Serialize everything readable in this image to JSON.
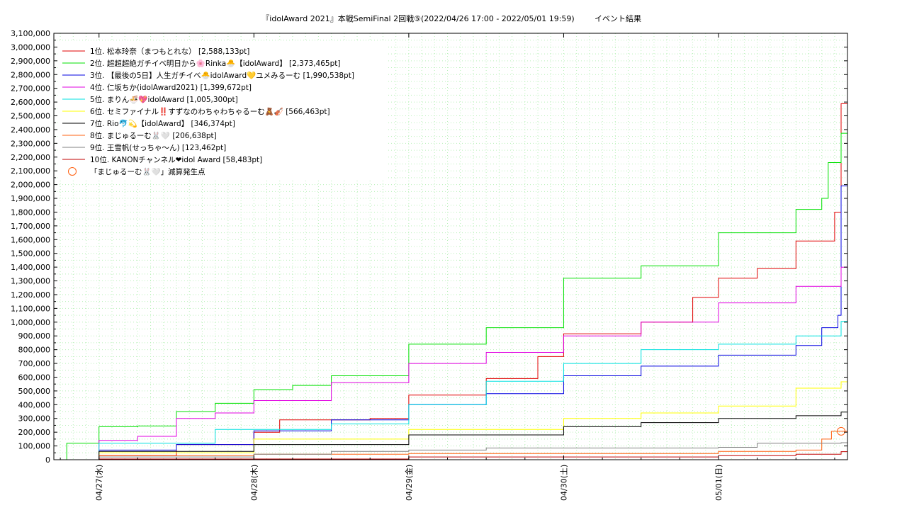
{
  "chart_data": {
    "type": "line",
    "title": "『idolAward 2021』本戦SemiFinal 2回戦⑤(2022/04/26 17:00 - 2022/05/01 19:59)",
    "subtitle": "イベント結果",
    "x_range": [
      "2022-04-26 17:00",
      "2022-05-01 19:59"
    ],
    "x_ticks": [
      {
        "t": "2022-04-27 00:00",
        "label": "04/27(水)"
      },
      {
        "t": "2022-04-28 00:00",
        "label": "04/28(木)"
      },
      {
        "t": "2022-04-29 00:00",
        "label": "04/29(金)"
      },
      {
        "t": "2022-04-30 00:00",
        "label": "04/30(土)"
      },
      {
        "t": "2022-05-01 00:00",
        "label": "05/01(日)"
      }
    ],
    "ylim": [
      0,
      3100000
    ],
    "y_ticks": [
      {
        "v": 0,
        "label": "0"
      },
      {
        "v": 100000,
        "label": "100,000"
      },
      {
        "v": 200000,
        "label": "200,000"
      },
      {
        "v": 300000,
        "label": "300,000"
      },
      {
        "v": 400000,
        "label": "400,000"
      },
      {
        "v": 500000,
        "label": "500,000"
      },
      {
        "v": 600000,
        "label": "600,000"
      },
      {
        "v": 700000,
        "label": "700,000"
      },
      {
        "v": 800000,
        "label": "800,000"
      },
      {
        "v": 900000,
        "label": "900,000"
      },
      {
        "v": 1000000,
        "label": "1,000,000"
      },
      {
        "v": 1100000,
        "label": "1,100,000"
      },
      {
        "v": 1200000,
        "label": "1,200,000"
      },
      {
        "v": 1300000,
        "label": "1,300,000"
      },
      {
        "v": 1400000,
        "label": "1,400,000"
      },
      {
        "v": 1500000,
        "label": "1,500,000"
      },
      {
        "v": 1600000,
        "label": "1,600,000"
      },
      {
        "v": 1700000,
        "label": "1,700,000"
      },
      {
        "v": 1800000,
        "label": "1,800,000"
      },
      {
        "v": 1900000,
        "label": "1,900,000"
      },
      {
        "v": 2000000,
        "label": "2,000,000"
      },
      {
        "v": 2100000,
        "label": "2,100,000"
      },
      {
        "v": 2200000,
        "label": "2,200,000"
      },
      {
        "v": 2300000,
        "label": "2,300,000"
      },
      {
        "v": 2400000,
        "label": "2,400,000"
      },
      {
        "v": 2500000,
        "label": "2,500,000"
      },
      {
        "v": 2600000,
        "label": "2,600,000"
      },
      {
        "v": 2700000,
        "label": "2,700,000"
      },
      {
        "v": 2800000,
        "label": "2,800,000"
      },
      {
        "v": 2900000,
        "label": "2,900,000"
      },
      {
        "v": 3000000,
        "label": "3,000,000"
      },
      {
        "v": 3100000,
        "label": "3,100,000"
      }
    ],
    "grid": true,
    "legend_position": "top-left",
    "series": [
      {
        "name": "1位. 松本玲奈（まつもとれな） [2,588,133pt]",
        "color": "#e00000",
        "points": [
          [
            "2022-04-26 17:00",
            0
          ],
          [
            "2022-04-27 00:00",
            30000
          ],
          [
            "2022-04-27 12:00",
            110000
          ],
          [
            "2022-04-28 00:00",
            200000
          ],
          [
            "2022-04-28 04:00",
            290000
          ],
          [
            "2022-04-28 18:00",
            300000
          ],
          [
            "2022-04-29 00:00",
            470000
          ],
          [
            "2022-04-29 12:00",
            590000
          ],
          [
            "2022-04-29 20:00",
            750000
          ],
          [
            "2022-04-30 00:00",
            915000
          ],
          [
            "2022-04-30 12:00",
            1000000
          ],
          [
            "2022-04-30 20:00",
            1180000
          ],
          [
            "2022-05-01 00:00",
            1320000
          ],
          [
            "2022-05-01 06:00",
            1390000
          ],
          [
            "2022-05-01 12:00",
            1590000
          ],
          [
            "2022-05-01 18:00",
            1800000
          ],
          [
            "2022-05-01 19:00",
            2588133
          ],
          [
            "2022-05-01 19:59",
            2588133
          ]
        ]
      },
      {
        "name": "2位. 超超超絶ガチイベ明日から🌸Rinka🐣【idolAward】 [2,373,465pt]",
        "color": "#00e000",
        "points": [
          [
            "2022-04-26 17:00",
            0
          ],
          [
            "2022-04-26 19:00",
            120000
          ],
          [
            "2022-04-27 00:00",
            240000
          ],
          [
            "2022-04-27 06:00",
            245000
          ],
          [
            "2022-04-27 12:00",
            350000
          ],
          [
            "2022-04-27 18:00",
            410000
          ],
          [
            "2022-04-28 00:00",
            510000
          ],
          [
            "2022-04-28 06:00",
            540000
          ],
          [
            "2022-04-28 12:00",
            610000
          ],
          [
            "2022-04-29 00:00",
            840000
          ],
          [
            "2022-04-29 12:00",
            960000
          ],
          [
            "2022-04-30 00:00",
            1320000
          ],
          [
            "2022-04-30 12:00",
            1410000
          ],
          [
            "2022-05-01 00:00",
            1650000
          ],
          [
            "2022-05-01 12:00",
            1820000
          ],
          [
            "2022-05-01 16:00",
            1900000
          ],
          [
            "2022-05-01 17:00",
            2160000
          ],
          [
            "2022-05-01 19:00",
            2373465
          ],
          [
            "2022-05-01 19:59",
            2373465
          ]
        ]
      },
      {
        "name": "3位. 【最後の5日】人生ガチイベ🐣idolAward💛ユメみるーむ [1,990,538pt]",
        "color": "#0000e0",
        "points": [
          [
            "2022-04-26 17:00",
            0
          ],
          [
            "2022-04-27 00:00",
            70000
          ],
          [
            "2022-04-27 12:00",
            110000
          ],
          [
            "2022-04-28 00:00",
            210000
          ],
          [
            "2022-04-28 12:00",
            290000
          ],
          [
            "2022-04-29 00:00",
            400000
          ],
          [
            "2022-04-29 12:00",
            480000
          ],
          [
            "2022-04-30 00:00",
            610000
          ],
          [
            "2022-04-30 12:00",
            680000
          ],
          [
            "2022-05-01 00:00",
            760000
          ],
          [
            "2022-05-01 12:00",
            830000
          ],
          [
            "2022-05-01 16:00",
            960000
          ],
          [
            "2022-05-01 18:30",
            1050000
          ],
          [
            "2022-05-01 19:00",
            1990538
          ],
          [
            "2022-05-01 19:59",
            1990538
          ]
        ]
      },
      {
        "name": "4位. 仁坂ちか(idolAward2021) [1,399,672pt]",
        "color": "#e000e0",
        "points": [
          [
            "2022-04-26 17:00",
            0
          ],
          [
            "2022-04-27 00:00",
            140000
          ],
          [
            "2022-04-27 06:00",
            170000
          ],
          [
            "2022-04-27 12:00",
            300000
          ],
          [
            "2022-04-27 18:00",
            340000
          ],
          [
            "2022-04-28 00:00",
            430000
          ],
          [
            "2022-04-28 12:00",
            560000
          ],
          [
            "2022-04-29 00:00",
            700000
          ],
          [
            "2022-04-29 12:00",
            780000
          ],
          [
            "2022-04-30 00:00",
            900000
          ],
          [
            "2022-04-30 12:00",
            1000000
          ],
          [
            "2022-05-01 00:00",
            1140000
          ],
          [
            "2022-05-01 12:00",
            1260000
          ],
          [
            "2022-05-01 19:00",
            1399672
          ],
          [
            "2022-05-01 19:59",
            1399672
          ]
        ]
      },
      {
        "name": "5位. まりん🍜💖idolAward [1,005,300pt]",
        "color": "#00e0e0",
        "points": [
          [
            "2022-04-26 17:00",
            0
          ],
          [
            "2022-04-27 00:00",
            120000
          ],
          [
            "2022-04-27 18:00",
            220000
          ],
          [
            "2022-04-28 12:00",
            260000
          ],
          [
            "2022-04-29 00:00",
            400000
          ],
          [
            "2022-04-29 12:00",
            570000
          ],
          [
            "2022-04-30 00:00",
            700000
          ],
          [
            "2022-04-30 12:00",
            800000
          ],
          [
            "2022-05-01 00:00",
            840000
          ],
          [
            "2022-05-01 12:00",
            900000
          ],
          [
            "2022-05-01 19:00",
            1005300
          ],
          [
            "2022-05-01 19:59",
            1005300
          ]
        ]
      },
      {
        "name": "6位. セミファイナル‼️すずなのわちゃわちゃるーむ🧸🎻 [566,463pt]",
        "color": "#ffff00",
        "points": [
          [
            "2022-04-26 17:00",
            0
          ],
          [
            "2022-04-27 00:00",
            50000
          ],
          [
            "2022-04-28 00:00",
            150000
          ],
          [
            "2022-04-29 00:00",
            220000
          ],
          [
            "2022-04-30 00:00",
            300000
          ],
          [
            "2022-04-30 12:00",
            340000
          ],
          [
            "2022-05-01 00:00",
            390000
          ],
          [
            "2022-05-01 12:00",
            520000
          ],
          [
            "2022-05-01 19:00",
            566463
          ],
          [
            "2022-05-01 19:59",
            566463
          ]
        ]
      },
      {
        "name": "7位. Rio🐬💫【idolAward】 [346,374pt]",
        "color": "#000000",
        "points": [
          [
            "2022-04-26 17:00",
            0
          ],
          [
            "2022-04-27 00:00",
            60000
          ],
          [
            "2022-04-28 00:00",
            110000
          ],
          [
            "2022-04-29 00:00",
            180000
          ],
          [
            "2022-04-30 00:00",
            240000
          ],
          [
            "2022-04-30 12:00",
            270000
          ],
          [
            "2022-05-01 00:00",
            300000
          ],
          [
            "2022-05-01 12:00",
            320000
          ],
          [
            "2022-05-01 19:00",
            346374
          ],
          [
            "2022-05-01 19:59",
            346374
          ]
        ]
      },
      {
        "name": "8位. まじゅるーむ🐰🤍 [206,638pt]",
        "color": "#ff6010",
        "points": [
          [
            "2022-04-26 17:00",
            0
          ],
          [
            "2022-04-27 00:00",
            30000
          ],
          [
            "2022-04-28 00:00",
            40000
          ],
          [
            "2022-04-29 00:00",
            45000
          ],
          [
            "2022-05-01 00:00",
            60000
          ],
          [
            "2022-05-01 12:00",
            70000
          ],
          [
            "2022-05-01 16:00",
            150000
          ],
          [
            "2022-05-01 17:30",
            206638
          ],
          [
            "2022-05-01 19:59",
            206638
          ]
        ]
      },
      {
        "name": "9位. 王雪帆(せっちゃ〜ん) [123,462pt]",
        "color": "#808080",
        "points": [
          [
            "2022-04-26 17:00",
            0
          ],
          [
            "2022-04-27 00:00",
            20000
          ],
          [
            "2022-04-28 00:00",
            40000
          ],
          [
            "2022-04-28 12:00",
            60000
          ],
          [
            "2022-04-29 00:00",
            70000
          ],
          [
            "2022-04-29 12:00",
            85000
          ],
          [
            "2022-05-01 00:00",
            90000
          ],
          [
            "2022-05-01 06:00",
            120000
          ],
          [
            "2022-05-01 19:00",
            123462
          ],
          [
            "2022-05-01 19:59",
            123462
          ]
        ]
      },
      {
        "name": "10位. KANONチャンネル❤idol Award [58,483pt]",
        "color": "#c00000",
        "points": [
          [
            "2022-04-26 17:00",
            0
          ],
          [
            "2022-04-27 00:00",
            5000
          ],
          [
            "2022-04-29 00:00",
            20000
          ],
          [
            "2022-05-01 00:00",
            30000
          ],
          [
            "2022-05-01 12:00",
            40000
          ],
          [
            "2022-05-01 19:00",
            58483
          ],
          [
            "2022-05-01 19:59",
            58483
          ]
        ]
      }
    ],
    "annotation": {
      "label": "「まじゅるーむ🐰🤍」減算発生点",
      "color": "#ff6010",
      "t": "2022-05-01 19:00",
      "v": 206638
    }
  }
}
